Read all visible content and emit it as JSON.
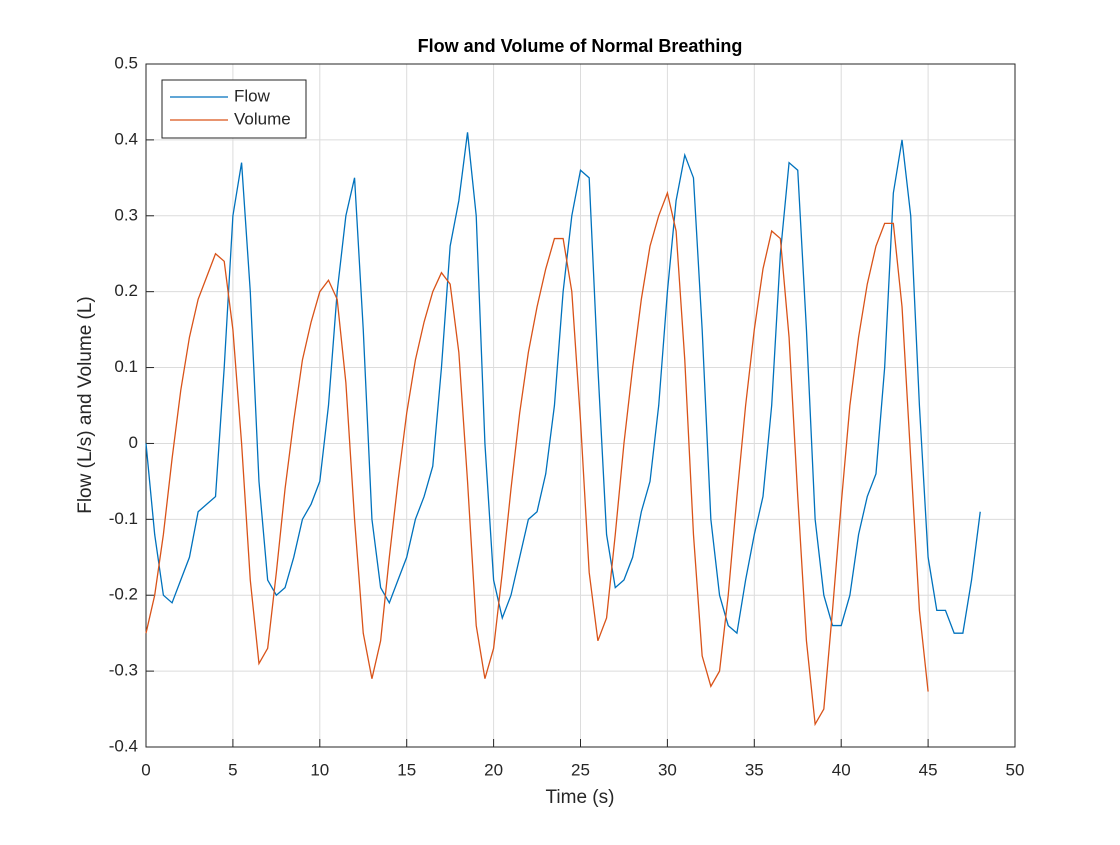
{
  "chart_data": {
    "type": "line",
    "title": "Flow and Volume of Normal Breathing",
    "xlabel": "Time (s)",
    "ylabel": "Flow (L/s) and Volume (L)",
    "xlim": [
      0,
      50
    ],
    "ylim": [
      -0.4,
      0.5
    ],
    "xticks": [
      0,
      5,
      10,
      15,
      20,
      25,
      30,
      35,
      40,
      45,
      50
    ],
    "yticks": [
      -0.4,
      -0.3,
      -0.2,
      -0.1,
      0,
      0.1,
      0.2,
      0.3,
      0.4,
      0.5
    ],
    "grid": true,
    "legend": "upper left",
    "series": [
      {
        "name": "Flow",
        "color": "#0072bd",
        "x": [
          0,
          0.5,
          1,
          1.5,
          2,
          2.5,
          3,
          3.5,
          4,
          4.5,
          5,
          5.5,
          6,
          6.5,
          7,
          7.5,
          8,
          8.5,
          9,
          9.5,
          10,
          10.5,
          11,
          11.5,
          12,
          12.5,
          13,
          13.5,
          14,
          14.5,
          15,
          15.5,
          16,
          16.5,
          17,
          17.5,
          18,
          18.5,
          19,
          19.5,
          20,
          20.5,
          21,
          21.5,
          22,
          22.5,
          23,
          23.5,
          24,
          24.5,
          25,
          25.5,
          26,
          26.5,
          27,
          27.5,
          28,
          28.5,
          29,
          29.5,
          30,
          30.5,
          31,
          31.5,
          32,
          32.5,
          33,
          33.5,
          34,
          34.5,
          35,
          35.5,
          36,
          36.5,
          37,
          37.5,
          38,
          38.5,
          39,
          39.5,
          40,
          40.5,
          41,
          41.5,
          42,
          42.5,
          43,
          43.5,
          44,
          44.5,
          45,
          45.5,
          46,
          46.5,
          47,
          47.5,
          48
        ],
        "values": [
          0.0,
          -0.12,
          -0.2,
          -0.21,
          -0.18,
          -0.15,
          -0.09,
          -0.08,
          -0.07,
          0.1,
          0.3,
          0.37,
          0.2,
          -0.05,
          -0.18,
          -0.2,
          -0.19,
          -0.15,
          -0.1,
          -0.08,
          -0.05,
          0.05,
          0.2,
          0.3,
          0.35,
          0.15,
          -0.1,
          -0.19,
          -0.21,
          -0.18,
          -0.15,
          -0.1,
          -0.07,
          -0.03,
          0.1,
          0.26,
          0.32,
          0.41,
          0.3,
          0.0,
          -0.18,
          -0.23,
          -0.2,
          -0.15,
          -0.1,
          -0.09,
          -0.04,
          0.05,
          0.2,
          0.3,
          0.36,
          0.35,
          0.1,
          -0.12,
          -0.19,
          -0.18,
          -0.15,
          -0.09,
          -0.05,
          0.05,
          0.2,
          0.32,
          0.38,
          0.35,
          0.15,
          -0.1,
          -0.2,
          -0.24,
          -0.25,
          -0.18,
          -0.12,
          -0.07,
          0.05,
          0.25,
          0.37,
          0.36,
          0.15,
          -0.1,
          -0.2,
          -0.24,
          -0.24,
          -0.2,
          -0.12,
          -0.07,
          -0.04,
          0.1,
          0.33,
          0.4,
          0.3,
          0.05,
          -0.15,
          -0.22,
          -0.22,
          -0.25,
          -0.25,
          -0.18,
          -0.09
        ]
      },
      {
        "name": "Volume",
        "color": "#d95319",
        "x": [
          0,
          0.5,
          1,
          1.5,
          2,
          2.5,
          3,
          3.5,
          4,
          4.5,
          5,
          5.5,
          6,
          6.5,
          7,
          7.5,
          8,
          8.5,
          9,
          9.5,
          10,
          10.5,
          11,
          11.5,
          12,
          12.5,
          13,
          13.5,
          14,
          14.5,
          15,
          15.5,
          16,
          16.5,
          17,
          17.5,
          18,
          18.5,
          19,
          19.5,
          20,
          20.5,
          21,
          21.5,
          22,
          22.5,
          23,
          23.5,
          24,
          24.5,
          25,
          25.5,
          26,
          26.5,
          27,
          27.5,
          28,
          28.5,
          29,
          29.5,
          30,
          30.5,
          31,
          31.5,
          32,
          32.5,
          33,
          33.5,
          34,
          34.5,
          35,
          35.5,
          36,
          36.5,
          37,
          37.5,
          38,
          38.5,
          39,
          39.5,
          40,
          40.5,
          41,
          41.5,
          42,
          42.5,
          43,
          43.5,
          44,
          44.5,
          45
        ],
        "values": [
          -0.25,
          -0.2,
          -0.12,
          -0.02,
          0.07,
          0.14,
          0.19,
          0.22,
          0.25,
          0.24,
          0.15,
          0.0,
          -0.18,
          -0.29,
          -0.27,
          -0.17,
          -0.06,
          0.03,
          0.11,
          0.16,
          0.2,
          0.215,
          0.19,
          0.08,
          -0.1,
          -0.25,
          -0.31,
          -0.26,
          -0.15,
          -0.05,
          0.04,
          0.11,
          0.16,
          0.2,
          0.225,
          0.21,
          0.12,
          -0.05,
          -0.24,
          -0.31,
          -0.27,
          -0.17,
          -0.06,
          0.04,
          0.12,
          0.18,
          0.23,
          0.27,
          0.27,
          0.2,
          0.03,
          -0.17,
          -0.26,
          -0.23,
          -0.12,
          0.0,
          0.1,
          0.19,
          0.26,
          0.3,
          0.33,
          0.28,
          0.11,
          -0.12,
          -0.28,
          -0.32,
          -0.3,
          -0.2,
          -0.07,
          0.05,
          0.15,
          0.23,
          0.28,
          0.27,
          0.14,
          -0.07,
          -0.26,
          -0.37,
          -0.35,
          -0.22,
          -0.08,
          0.05,
          0.14,
          0.21,
          0.26,
          0.29,
          0.29,
          0.18,
          -0.02,
          -0.22,
          -0.327
        ]
      }
    ]
  }
}
